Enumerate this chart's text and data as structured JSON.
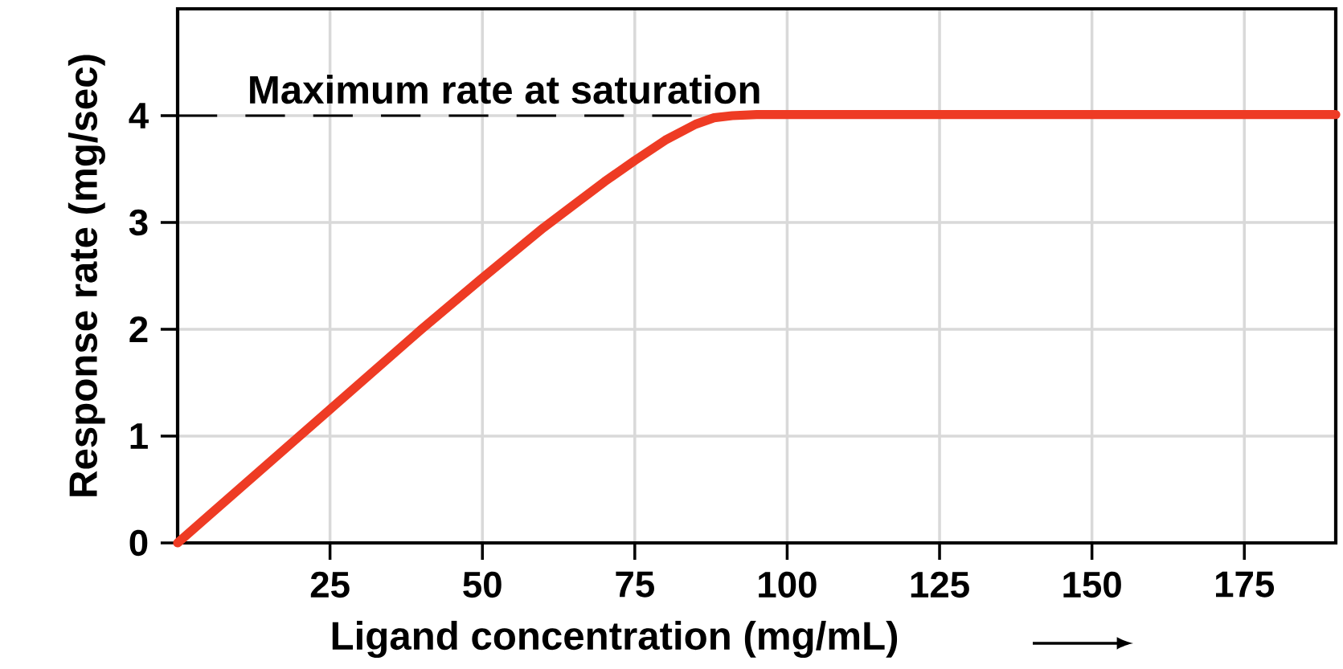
{
  "chart_data": {
    "type": "line",
    "xlabel": "Ligand concentration (mg/mL)",
    "ylabel": "Response rate (mg/sec)",
    "x": [
      0,
      10,
      25,
      40,
      50,
      60,
      70,
      75,
      80,
      85,
      88,
      91,
      95,
      100,
      125,
      150,
      175,
      190
    ],
    "series": [
      {
        "color": "#ee3b24",
        "values": [
          0,
          0.5,
          1.25,
          2.0,
          2.48,
          2.95,
          3.38,
          3.58,
          3.77,
          3.92,
          3.98,
          4.0,
          4.01,
          4.01,
          4.01,
          4.01,
          4.01,
          4.01
        ]
      }
    ],
    "xlim": [
      0,
      190
    ],
    "ylim": [
      0,
      5
    ],
    "xticks": [
      25,
      50,
      75,
      100,
      125,
      150,
      175
    ],
    "yticks": [
      0,
      1,
      2,
      3,
      4
    ],
    "grid": true,
    "line_style": "solid",
    "marker": "none",
    "ref_lines": [
      {
        "axis": "y",
        "value": 4,
        "label": "Maximum rate at saturation",
        "color": "#000000",
        "line_style": "dashed"
      }
    ]
  }
}
